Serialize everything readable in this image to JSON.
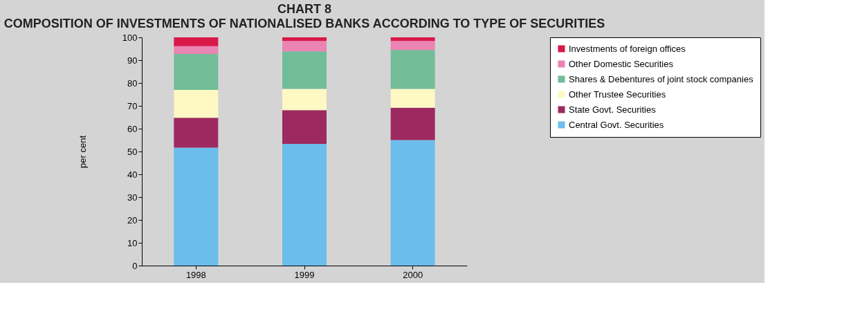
{
  "chart_data": {
    "type": "bar",
    "stacked": true,
    "title": "CHART 8",
    "subtitle": "COMPOSITION OF INVESTMENTS OF NATIONALISED BANKS ACCORDING TO TYPE OF SECURITIES",
    "ylabel": "per cent",
    "categories": [
      "1998",
      "1999",
      "2000"
    ],
    "series": [
      {
        "name": "Central Govt. Securities",
        "color": "#6bbdeb",
        "values": [
          51.7,
          53.3,
          55.0
        ]
      },
      {
        "name": "State Govt. Securities",
        "color": "#9c2a60",
        "values": [
          13.1,
          14.8,
          14.2
        ]
      },
      {
        "name": "Other Trustee Securities",
        "color": "#fdf8c4",
        "values": [
          12.2,
          9.3,
          8.2
        ]
      },
      {
        "name": "Shares & Debentures of joint stock companies",
        "color": "#72bd98",
        "values": [
          15.7,
          16.5,
          17.1
        ]
      },
      {
        "name": "Other Domestic Securities",
        "color": "#ea84b3",
        "values": [
          3.4,
          4.5,
          3.9
        ]
      },
      {
        "name": "Investments of foreign offices",
        "color": "#d8194a",
        "values": [
          3.9,
          1.6,
          1.6
        ]
      }
    ],
    "ylim": [
      0,
      100
    ],
    "yticks": [
      0,
      10,
      20,
      30,
      40,
      50,
      60,
      70,
      80,
      90,
      100
    ],
    "grid": false,
    "legend": "right"
  }
}
